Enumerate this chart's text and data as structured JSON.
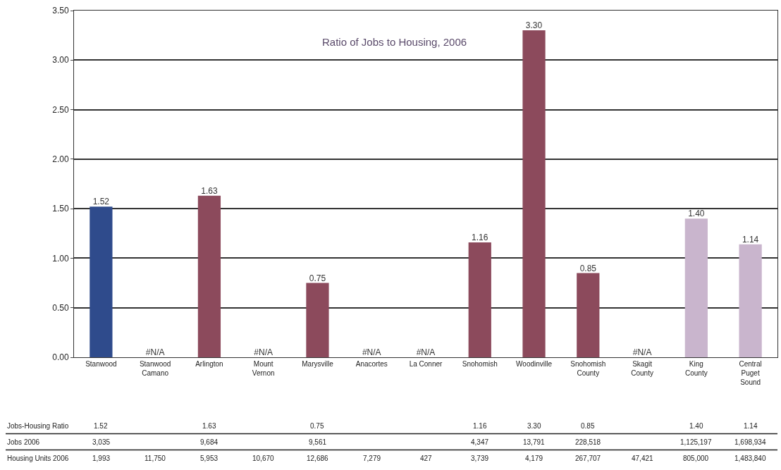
{
  "chart_data": {
    "type": "bar",
    "title": "Ratio of Jobs to Housing, 2006",
    "categories": [
      "Stanwood",
      "Stanwood\nCamano",
      "Arlington",
      "Mount\nVernon",
      "Marysville",
      "Anacortes",
      "La Conner",
      "Snohomish",
      "Woodinville",
      "Snohomish\nCounty",
      "Skagit\nCounty",
      "King\nCounty",
      "Central\nPuget\nSound"
    ],
    "values": [
      1.52,
      null,
      1.63,
      null,
      0.75,
      null,
      null,
      1.16,
      3.3,
      0.85,
      null,
      1.4,
      1.14
    ],
    "value_labels": [
      "1.52",
      "#N/A",
      "1.63",
      "#N/A",
      "0.75",
      "#N/A",
      "#N/A",
      "1.16",
      "3.30",
      "0.85",
      "#N/A",
      "1.40",
      "1.14"
    ],
    "colors": [
      "#2f4b8c",
      "#8c4a5c",
      "#8c4a5c",
      "#8c4a5c",
      "#8c4a5c",
      "#8c4a5c",
      "#8c4a5c",
      "#8c4a5c",
      "#8c4a5c",
      "#8c4a5c",
      "#8c4a5c",
      "#c9b5cd",
      "#c9b5cd"
    ],
    "ylim": [
      0,
      3.5
    ],
    "yticks": [
      {
        "value": 0,
        "label": "0.00"
      },
      {
        "value": 0.5,
        "label": "0.50"
      },
      {
        "value": 1,
        "label": "1.00"
      },
      {
        "value": 1.5,
        "label": "1.50"
      },
      {
        "value": 2,
        "label": "2.00"
      },
      {
        "value": 2.5,
        "label": "2.50"
      },
      {
        "value": 3,
        "label": "3.00"
      },
      {
        "value": 3.5,
        "label": "3.50"
      }
    ],
    "grid": "y",
    "annotations": [
      "Jobs-Housing Ratio",
      "1.52",
      "1.63",
      "0.75",
      "1.16",
      "3.30",
      "0.85",
      "1.40",
      "1.14",
      "Jobs 2006",
      "3,035",
      "9,684",
      "9,561",
      "4,347",
      "13,791",
      "228,518",
      "1,125,197",
      "1,698,934",
      "Housing Units 2006",
      "1,993",
      "11,750",
      "5,953",
      "10,670",
      "12,686",
      "7,279",
      "427",
      "3,739",
      "4,179",
      "267,707",
      "47,421",
      "805,000",
      "1,483,840"
    ]
  }
}
